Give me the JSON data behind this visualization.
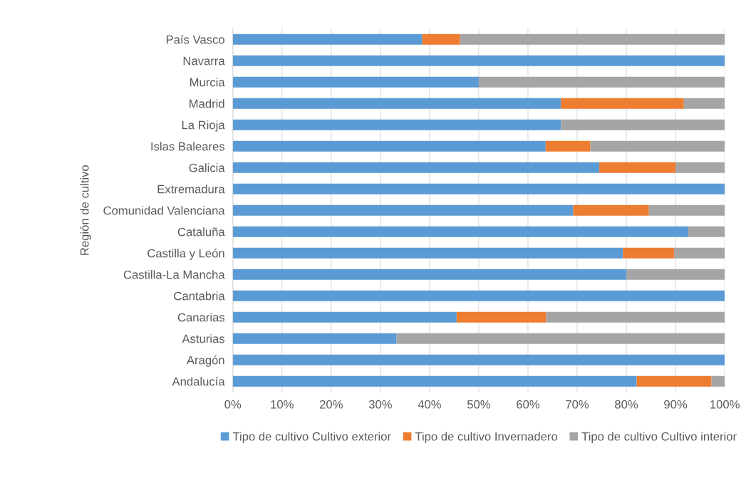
{
  "chart_data": {
    "type": "bar",
    "orientation": "horizontal",
    "stacked": true,
    "ylabel": "Región de cultivo",
    "categories": [
      "País Vasco",
      "Navarra",
      "Murcia",
      "Madrid",
      "La Rioja",
      "Islas Baleares",
      "Galicia",
      "Extremadura",
      "Comunidad Valenciana",
      "Cataluña",
      "Castilla y León",
      "Castilla-La Mancha",
      "Cantabria",
      "Canarias",
      "Asturias",
      "Aragón",
      "Andalucía"
    ],
    "series": [
      {
        "name": "Tipo de cultivo Cultivo exterior",
        "color": "#5b9bd5",
        "values": [
          38.5,
          100,
          50,
          66.7,
          66.7,
          63.6,
          74.5,
          100,
          69.2,
          92.6,
          79.3,
          80,
          100,
          45.5,
          33.3,
          100,
          82.1
        ]
      },
      {
        "name": "Tipo de cultivo Invernadero",
        "color": "#ed7d31",
        "values": [
          7.7,
          0,
          0,
          25,
          0,
          9.1,
          15.5,
          0,
          15.4,
          0,
          10.4,
          0,
          0,
          18.2,
          0,
          0,
          15.2
        ]
      },
      {
        "name": "Tipo de cultivo Cultivo interior",
        "color": "#a5a5a5",
        "values": [
          53.8,
          0,
          50,
          8.3,
          33.3,
          27.3,
          10,
          0,
          15.4,
          7.4,
          10.3,
          20,
          0,
          36.3,
          66.7,
          0,
          2.7
        ]
      }
    ],
    "xlim": [
      0,
      100
    ],
    "xticks": [
      {
        "value": 0,
        "label": "0%"
      },
      {
        "value": 10,
        "label": "10%"
      },
      {
        "value": 20,
        "label": "20%"
      },
      {
        "value": 30,
        "label": "30%"
      },
      {
        "value": 40,
        "label": "40%"
      },
      {
        "value": 50,
        "label": "50%"
      },
      {
        "value": 60,
        "label": "60%"
      },
      {
        "value": 70,
        "label": "70%"
      },
      {
        "value": 80,
        "label": "80%"
      },
      {
        "value": 90,
        "label": "90%"
      },
      {
        "value": 100,
        "label": "100%"
      }
    ],
    "grid": "x",
    "legend": "bottom"
  }
}
